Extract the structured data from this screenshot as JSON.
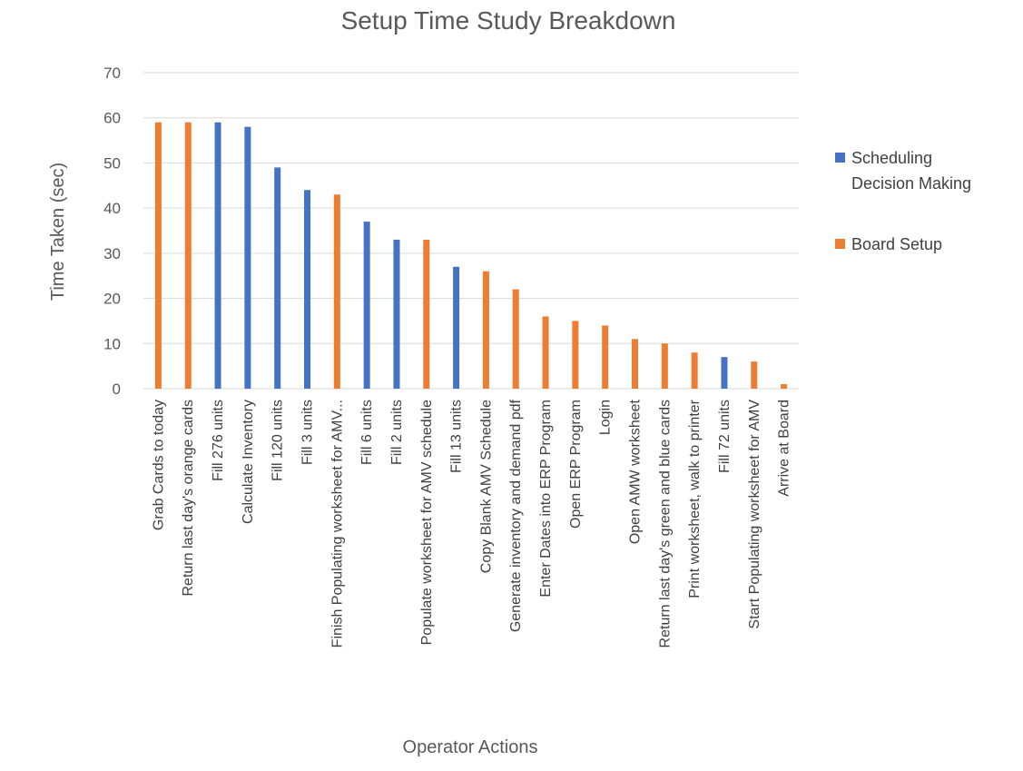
{
  "chart_data": {
    "type": "bar",
    "title": "Setup Time Study Breakdown",
    "xlabel": "Operator Actions",
    "ylabel": "Time Taken (sec)",
    "ylim": [
      0,
      70
    ],
    "yticks": [
      0,
      10,
      20,
      30,
      40,
      50,
      60,
      70
    ],
    "grid": true,
    "legend_position": "right",
    "categories": [
      "Grab Cards to today",
      "Return last day's orange cards",
      "Fill 276 units",
      "Calculate Inventory",
      "Fill 120 units",
      "Fill 3 units",
      "Finish Populating worksheet for AMV...",
      "Fill 6 units",
      "Fill 2 units",
      "Populate worksheet for AMV schedule",
      "Fill 13 units",
      "Copy Blank AMV Schedule",
      "Generate inventory and demand pdf",
      "Enter Dates into ERP Program",
      "Open ERP Program",
      "Login",
      "Open AMW worksheet",
      "Return last day's green and blue cards",
      "Print worksheet, walk to printer",
      "Fill 72 units",
      "Start Populating worksheet for AMV",
      "Arrive at Board"
    ],
    "series": [
      {
        "name": "Scheduling Decision Making",
        "legend_lines": [
          "Scheduling",
          "Decision Making"
        ],
        "color": "#4472c4",
        "values": [
          null,
          null,
          59,
          58,
          49,
          44,
          null,
          37,
          33,
          null,
          27,
          null,
          null,
          null,
          null,
          null,
          null,
          null,
          null,
          7,
          null,
          null
        ]
      },
      {
        "name": "Board Setup",
        "legend_lines": [
          "Board Setup"
        ],
        "color": "#ed7d31",
        "values": [
          59,
          59,
          null,
          null,
          null,
          null,
          43,
          null,
          null,
          33,
          null,
          26,
          22,
          16,
          15,
          14,
          11,
          10,
          8,
          null,
          6,
          1
        ]
      }
    ]
  }
}
